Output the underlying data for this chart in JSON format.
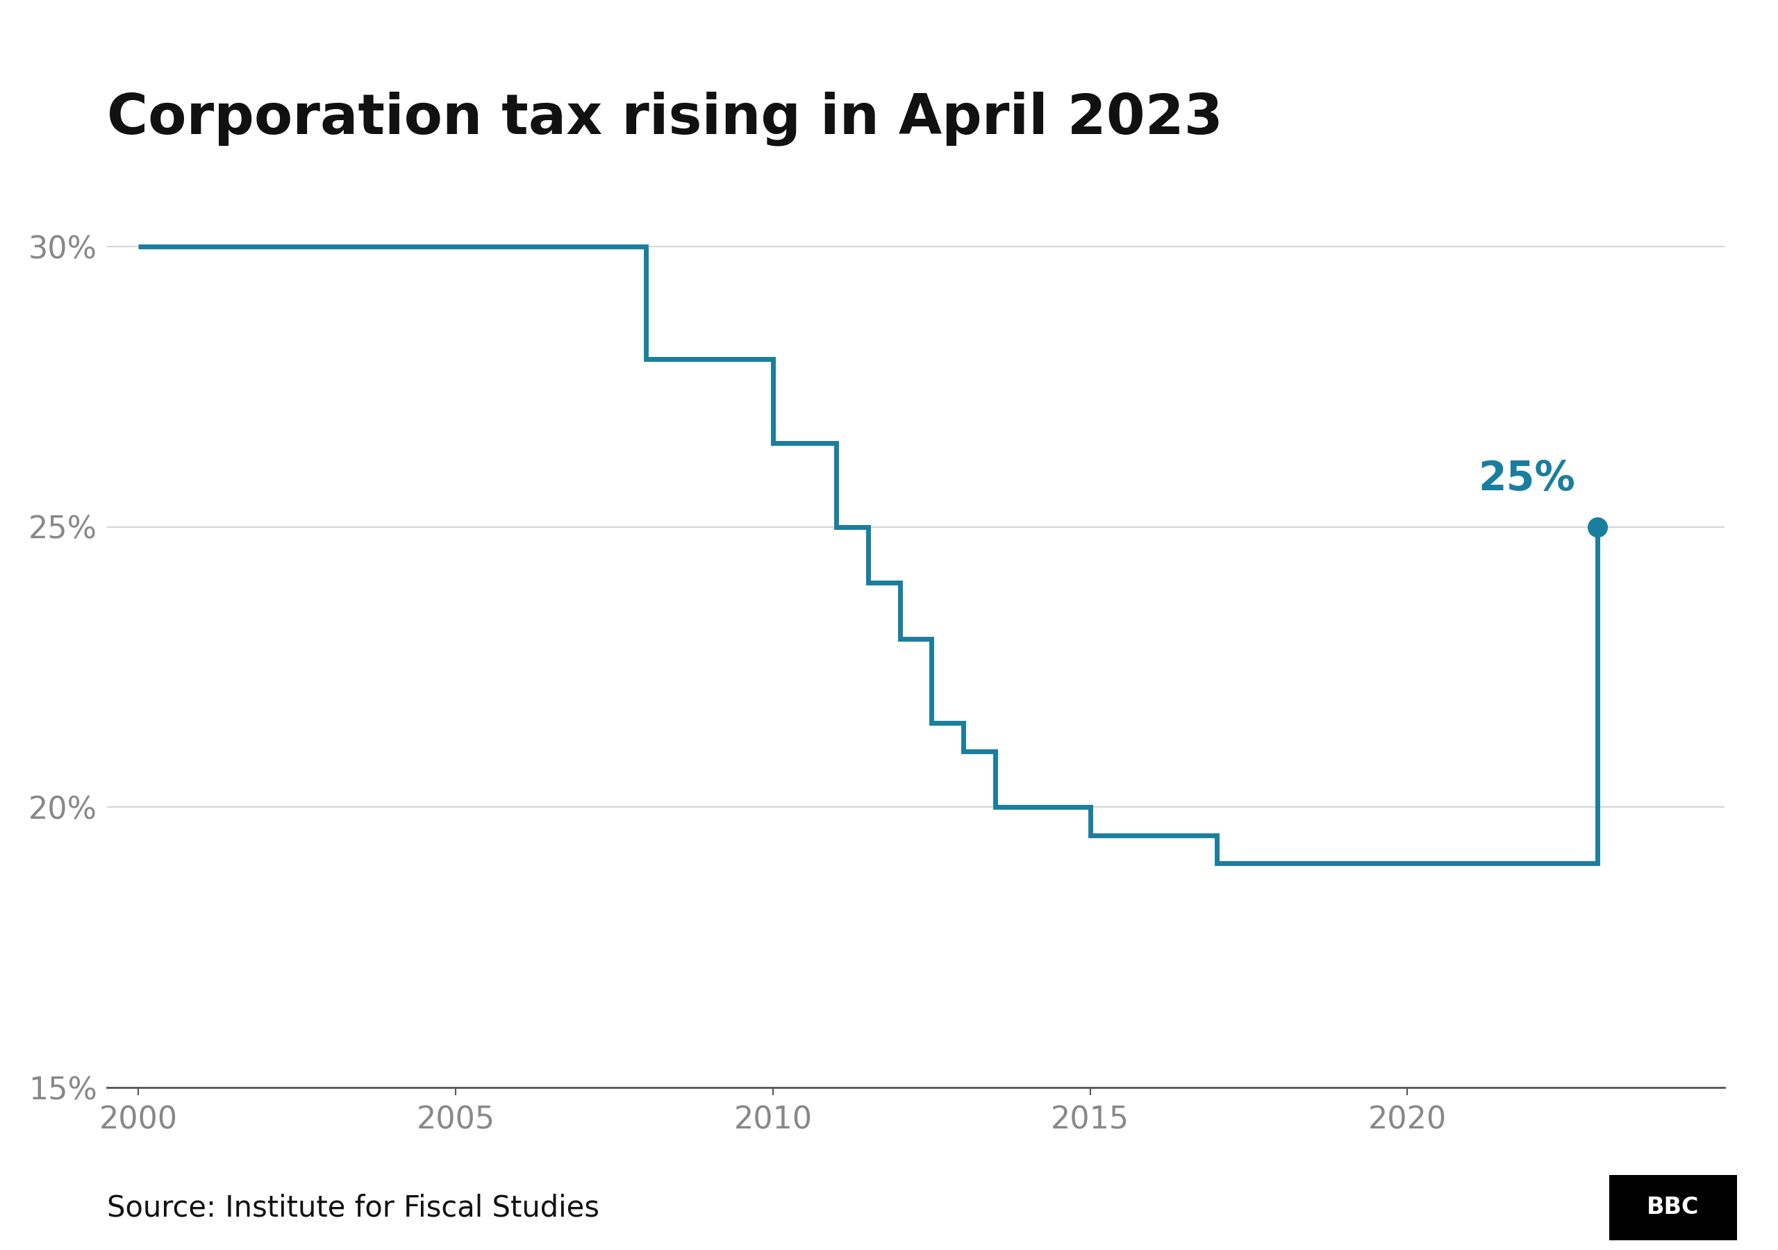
{
  "title": "Corporation tax rising in April 2023",
  "source": "Source: Institute for Fiscal Studies",
  "line_color": "#1a7e9e",
  "dot_color": "#1a7e9e",
  "annotation_color": "#1a7e9e",
  "grid_color": "#cccccc",
  "axis_color": "#555555",
  "tick_color": "#888888",
  "background_color": "#ffffff",
  "xlim": [
    1999.5,
    2025.0
  ],
  "ylim": [
    15,
    31.5
  ],
  "yticks": [
    15,
    20,
    25,
    30
  ],
  "xticks": [
    2000,
    2005,
    2010,
    2015,
    2020
  ],
  "step_data": [
    [
      2000,
      30
    ],
    [
      2008,
      30
    ],
    [
      2008,
      28
    ],
    [
      2010,
      28
    ],
    [
      2010,
      26.5
    ],
    [
      2011,
      26.5
    ],
    [
      2011,
      25
    ],
    [
      2011.5,
      25
    ],
    [
      2011.5,
      24
    ],
    [
      2012,
      24
    ],
    [
      2012,
      23
    ],
    [
      2012.5,
      23
    ],
    [
      2012.5,
      21.5
    ],
    [
      2013,
      21.5
    ],
    [
      2013,
      21
    ],
    [
      2013.5,
      21
    ],
    [
      2013.5,
      20
    ],
    [
      2015,
      20
    ],
    [
      2015,
      19.5
    ],
    [
      2017,
      19.5
    ],
    [
      2017,
      19
    ],
    [
      2023,
      19
    ],
    [
      2023,
      25
    ]
  ],
  "endpoint_x": 2023,
  "endpoint_y": 25,
  "annotation_text": "25%",
  "title_fontsize": 58,
  "tick_fontsize": 32,
  "source_fontsize": 30,
  "annotation_fontsize": 42,
  "line_width": 5.0,
  "dot_size": 20
}
